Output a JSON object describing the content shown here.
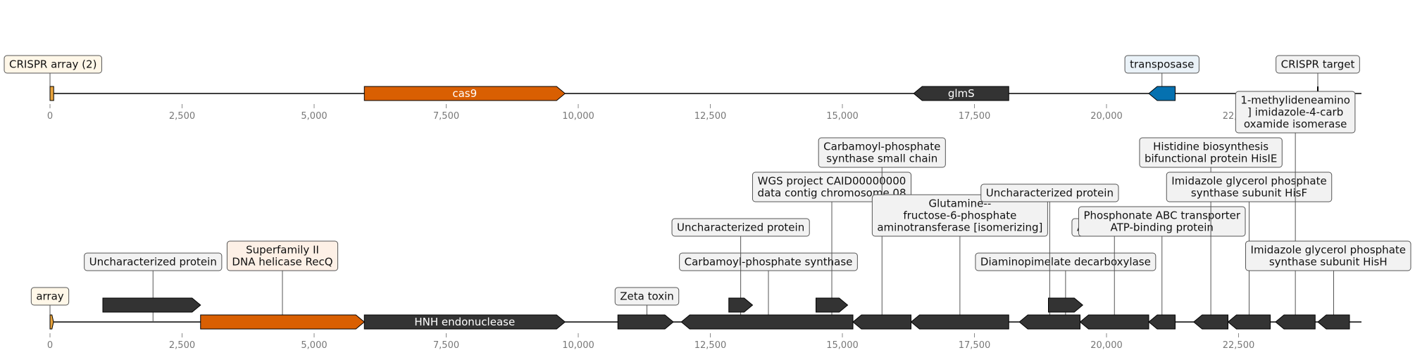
{
  "colors": {
    "dark_gene": "#333333",
    "cas9": "#d95f02",
    "transposase": "#0571b0",
    "crispr": "#e8a33d",
    "backbone": "#000000",
    "tick": "#888888",
    "label_default_fill": "#f2f2f2",
    "label_crispr_fill": "#fff7e8",
    "label_cas_fill": "#fdf0e6",
    "label_transposase_fill": "#eaf2f8"
  },
  "tracks": [
    {
      "id": "top",
      "axis": {
        "min": 0,
        "max": 24000,
        "ticks": [
          0,
          2500,
          5000,
          7500,
          10000,
          12500,
          15000,
          17500,
          20000,
          22500
        ],
        "tick_labels": [
          "0",
          "2,500",
          "5,000",
          "7,500",
          "10,000",
          "12,500",
          "15,000",
          "17,500",
          "20,000",
          "22,500"
        ]
      },
      "features": [
        {
          "name": "crispr-array-block",
          "start": 0,
          "end": 70,
          "strand": 0,
          "color": "crispr",
          "inner_label": ""
        },
        {
          "name": "cas9-gene",
          "start": 5950,
          "end": 9750,
          "strand": 1,
          "color": "cas9",
          "inner_label": "cas9"
        },
        {
          "name": "glms-gene",
          "start": 16350,
          "end": 18150,
          "strand": -1,
          "color": "dark_gene",
          "inner_label": "glmS"
        },
        {
          "name": "transposase-gene",
          "start": 20800,
          "end": 21300,
          "strand": -1,
          "color": "transposase",
          "inner_label": ""
        },
        {
          "name": "crispr-target-mark",
          "start": 24000,
          "end": 24000,
          "strand": 0,
          "color": "backbone",
          "inner_label": ""
        }
      ],
      "labels": [
        {
          "name": "label-crispr-array",
          "text": [
            "CRISPR array (2)"
          ],
          "pos": 0,
          "fill": "label_crispr_fill"
        },
        {
          "name": "label-transposase",
          "text": [
            "transposase"
          ],
          "pos": 21050,
          "fill": "label_transposase_fill"
        },
        {
          "name": "label-crispr-target",
          "text": [
            "CRISPR target"
          ],
          "pos": 24000,
          "fill": "label_default_fill"
        }
      ]
    },
    {
      "id": "bottom",
      "axis": {
        "min": 0,
        "max": 24000,
        "ticks": [
          0,
          2500,
          5000,
          7500,
          10000,
          12500,
          15000,
          17500,
          20000,
          22500
        ],
        "tick_labels": [
          "0",
          "2,500",
          "5,000",
          "7,500",
          "10,000",
          "12,500",
          "15,000",
          "17,500",
          "20,000",
          "22,500"
        ]
      },
      "features": [
        {
          "name": "array-block",
          "start": 0,
          "end": 60,
          "strand": 1,
          "color": "crispr",
          "inner_label": "",
          "row": 0
        },
        {
          "name": "uncharacterized-gene-1",
          "start": 1000,
          "end": 2850,
          "strand": 1,
          "color": "dark_gene",
          "inner_label": "",
          "row": 1
        },
        {
          "name": "recq-gene",
          "start": 2850,
          "end": 5950,
          "strand": 1,
          "color": "cas9",
          "inner_label": "",
          "row": 0
        },
        {
          "name": "hnh-endonuclease-gene",
          "start": 5950,
          "end": 9750,
          "strand": 1,
          "color": "dark_gene",
          "inner_label": "HNH endonuclease",
          "row": 0
        },
        {
          "name": "zeta-toxin-gene",
          "start": 10750,
          "end": 11800,
          "strand": 1,
          "color": "dark_gene",
          "inner_label": "",
          "row": 0
        },
        {
          "name": "carbamoyl-phosphate-synthase-gene",
          "start": 11950,
          "end": 15200,
          "strand": -1,
          "color": "dark_gene",
          "inner_label": "",
          "row": 0
        },
        {
          "name": "small-gene-a",
          "start": 12850,
          "end": 13300,
          "strand": 1,
          "color": "dark_gene",
          "inner_label": "",
          "row": 1
        },
        {
          "name": "small-gene-b",
          "start": 14500,
          "end": 15100,
          "strand": 1,
          "color": "dark_gene",
          "inner_label": "",
          "row": 1
        },
        {
          "name": "carbamoyl-small-chain-gene",
          "start": 15200,
          "end": 16300,
          "strand": -1,
          "color": "dark_gene",
          "inner_label": "",
          "row": 0
        },
        {
          "name": "glutamine-fructose-gene",
          "start": 16300,
          "end": 18150,
          "strand": -1,
          "color": "dark_gene",
          "inner_label": "",
          "row": 0
        },
        {
          "name": "uncharacterized-gene-2",
          "start": 18350,
          "end": 19500,
          "strand": -1,
          "color": "dark_gene",
          "inner_label": "",
          "row": 0
        },
        {
          "name": "diaminopimelate-gene",
          "start": 18900,
          "end": 19550,
          "strand": 1,
          "color": "dark_gene",
          "inner_label": "",
          "row": 1
        },
        {
          "name": "aspartokinase-gene",
          "start": 19500,
          "end": 20800,
          "strand": -1,
          "color": "dark_gene",
          "inner_label": "",
          "row": 0
        },
        {
          "name": "phosphonate-abc-gene",
          "start": 20800,
          "end": 21300,
          "strand": -1,
          "color": "dark_gene",
          "inner_label": "",
          "row": 0
        },
        {
          "name": "hisie-gene",
          "start": 21650,
          "end": 22300,
          "strand": -1,
          "color": "dark_gene",
          "inner_label": "",
          "row": 0
        },
        {
          "name": "hisf-gene",
          "start": 22300,
          "end": 23100,
          "strand": -1,
          "color": "dark_gene",
          "inner_label": "",
          "row": 0
        },
        {
          "name": "isomerase-gene",
          "start": 23200,
          "end": 23950,
          "strand": -1,
          "color": "dark_gene",
          "inner_label": "",
          "row": 0
        },
        {
          "name": "hish-gene",
          "start": 24000,
          "end": 24600,
          "strand": -1,
          "color": "dark_gene",
          "inner_label": "",
          "row": 0
        }
      ],
      "labels": [
        {
          "name": "label-array",
          "text": [
            "array"
          ],
          "pos": 0,
          "fill": "label_crispr_fill",
          "level": 0
        },
        {
          "name": "label-uncharacterized-1",
          "text": [
            "Uncharacterized protein"
          ],
          "pos": 1950,
          "fill": "label_default_fill",
          "level": 1
        },
        {
          "name": "label-recq",
          "text": [
            "Superfamily II",
            "DNA helicase RecQ"
          ],
          "pos": 4400,
          "fill": "label_cas_fill",
          "level": 1
        },
        {
          "name": "label-zeta-toxin",
          "text": [
            "Zeta toxin"
          ],
          "pos": 11300,
          "fill": "label_default_fill",
          "level": 0
        },
        {
          "name": "label-carbamoyl-phosphate-synthase",
          "text": [
            "Carbamoyl-phosphate synthase"
          ],
          "pos": 13600,
          "fill": "label_default_fill",
          "level": 1
        },
        {
          "name": "label-uncharacterized-2",
          "text": [
            "Uncharacterized protein"
          ],
          "pos": 13075,
          "fill": "label_default_fill",
          "level": 2
        },
        {
          "name": "label-wgs-project",
          "text": [
            "WGS project CAID00000000",
            "data contig chromosome 08"
          ],
          "pos": 14800,
          "fill": "label_default_fill",
          "level": 3
        },
        {
          "name": "label-carbamoyl-small-chain",
          "text": [
            "Carbamoyl-phosphate",
            "synthase small chain"
          ],
          "pos": 15750,
          "fill": "label_default_fill",
          "level": 4
        },
        {
          "name": "label-glutamine-fructose",
          "text": [
            "Glutamine--",
            "fructose-6-phosphate",
            "aminotransferase [isomerizing]"
          ],
          "pos": 17225,
          "fill": "label_default_fill",
          "level": 2
        },
        {
          "name": "label-diaminopimelate",
          "text": [
            "Diaminopimelate decarboxylase"
          ],
          "pos": 19225,
          "fill": "label_default_fill",
          "level": 1
        },
        {
          "name": "label-uncharacterized-3",
          "text": [
            "Uncharacterized protein"
          ],
          "pos": 18925,
          "fill": "label_default_fill",
          "level": 3
        },
        {
          "name": "label-aspartokinase",
          "text": [
            "Aspartokinase"
          ],
          "pos": 20150,
          "fill": "label_default_fill",
          "level": 2
        },
        {
          "name": "label-phosphonate-abc",
          "text": [
            "Phosphonate ABC transporter",
            "ATP-binding protein"
          ],
          "pos": 21050,
          "fill": "label_default_fill",
          "level": 2
        },
        {
          "name": "label-hisie",
          "text": [
            "Histidine biosynthesis",
            "bifunctional protein HisIE"
          ],
          "pos": 21975,
          "fill": "label_default_fill",
          "level": 4
        },
        {
          "name": "label-hisf",
          "text": [
            "Imidazole glycerol phosphate",
            "synthase subunit HisF"
          ],
          "pos": 22700,
          "fill": "label_default_fill",
          "level": 3
        },
        {
          "name": "label-isomerase",
          "text": [
            "1-methylideneamino",
            "] imidazole-4-carb",
            "oxamide isomerase"
          ],
          "pos": 23575,
          "fill": "label_default_fill",
          "level": 5
        },
        {
          "name": "label-hish",
          "text": [
            "Imidazole glycerol phosphate",
            "synthase subunit HisH"
          ],
          "pos": 24300,
          "fill": "label_default_fill",
          "level": 1
        }
      ]
    }
  ]
}
